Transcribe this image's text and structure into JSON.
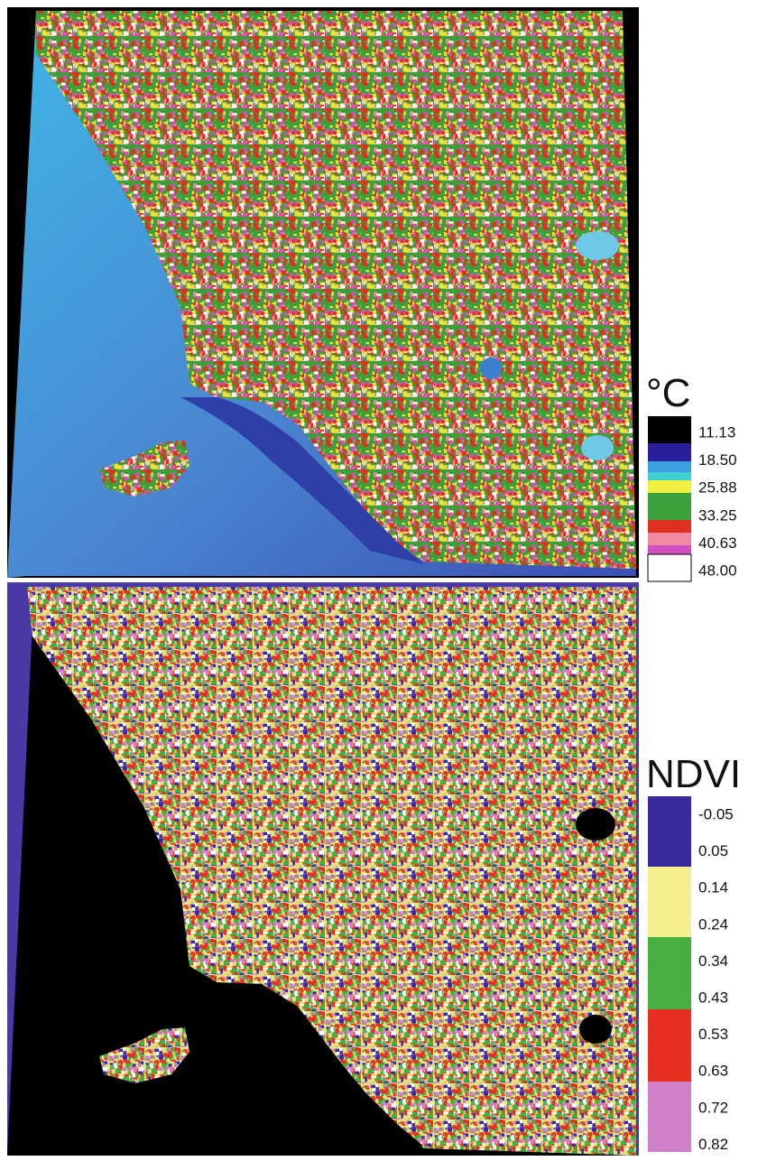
{
  "panels": [
    {
      "legend": {
        "title": "°C",
        "labels": [
          "11.13",
          "18.50",
          "25.88",
          "33.25",
          "40.63",
          "48.00"
        ]
      }
    },
    {
      "legend": {
        "title": "NDVI",
        "labels": [
          "-0.05",
          "0.05",
          "0.14",
          "0.24",
          "0.34",
          "0.43",
          "0.53",
          "0.63",
          "0.72",
          "0.82"
        ]
      }
    }
  ]
}
